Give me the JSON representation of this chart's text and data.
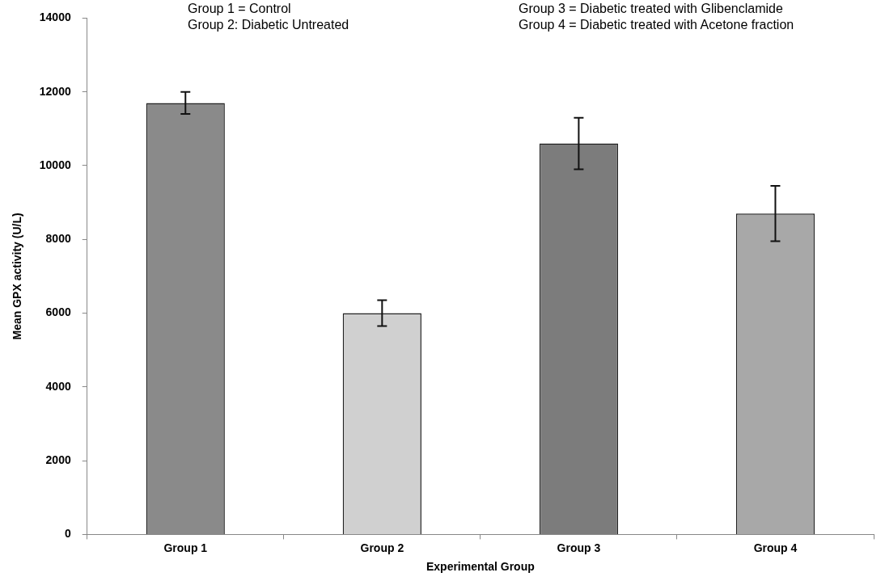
{
  "chart_data": {
    "type": "bar",
    "xlabel": "Experimental Group",
    "ylabel": "Mean GPX activity (U/L)",
    "categories": [
      "Group 1",
      "Group 2",
      "Group 3",
      "Group 4"
    ],
    "values": [
      11700,
      6000,
      10600,
      8700
    ],
    "errors": [
      300,
      350,
      700,
      750
    ],
    "colors": [
      "#8a8a8a",
      "#d0d0d0",
      "#7c7c7c",
      "#a8a8a8"
    ],
    "ylim": [
      0,
      14000
    ],
    "yticks": [
      0,
      2000,
      4000,
      6000,
      8000,
      10000,
      12000,
      14000
    ],
    "grid": false,
    "legend": false,
    "annotations": [
      "Group 1 = Control",
      "Group 2: Diabetic Untreated",
      "Group 3 = Diabetic treated with Glibenclamide",
      "Group 4 = Diabetic treated with Acetone fraction"
    ]
  }
}
